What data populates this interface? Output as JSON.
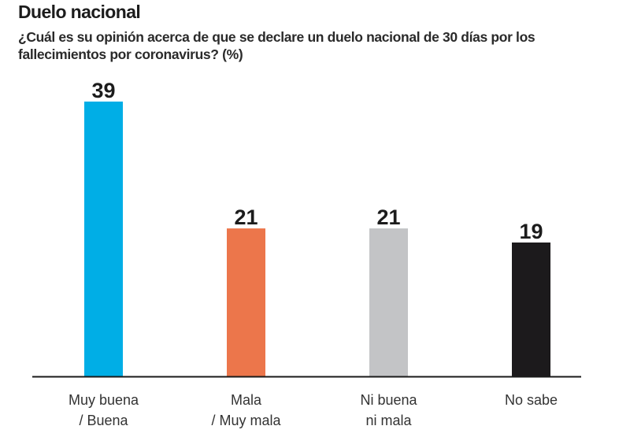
{
  "chart_data": {
    "type": "bar",
    "title": "Duelo nacional",
    "subtitle": "¿Cuál es su opinión  acerca de que se declare un duelo nacional de 30 días por los fallecimientos por coronavirus? (%)",
    "xlabel": "",
    "ylabel": "",
    "ylim": [
      0,
      39
    ],
    "grid": false,
    "legend": "none",
    "categories": [
      "Muy buena / Buena",
      "Mala / Muy mala",
      "Ni buena ni mala",
      "No sabe"
    ],
    "category_lines": [
      [
        "Muy buena",
        "/ Buena"
      ],
      [
        "Mala",
        "/ Muy mala"
      ],
      [
        "Ni buena",
        "ni mala"
      ],
      [
        "No sabe"
      ]
    ],
    "values": [
      39,
      21,
      21,
      19
    ],
    "value_labels": [
      "39",
      "21",
      "21",
      "19"
    ],
    "colors": [
      "#00aee6",
      "#ec764b",
      "#c3c4c6",
      "#1c1a1c"
    ]
  }
}
